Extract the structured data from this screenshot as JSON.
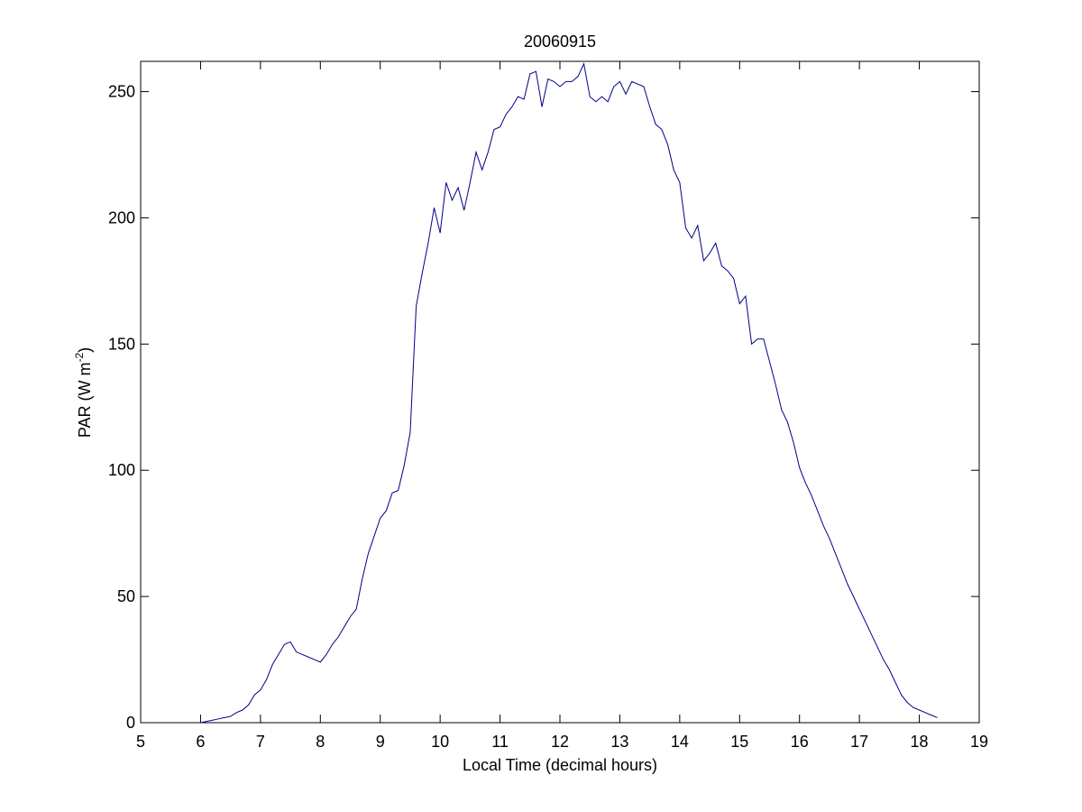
{
  "chart_data": {
    "type": "line",
    "title": "20060915",
    "xlabel": "Local Time (decimal hours)",
    "ylabel": [
      "PAR (W m",
      "-2",
      ")"
    ],
    "x": [
      6.0,
      6.1,
      6.2,
      6.3,
      6.4,
      6.5,
      6.6,
      6.7,
      6.8,
      6.9,
      7.0,
      7.1,
      7.2,
      7.3,
      7.4,
      7.5,
      7.6,
      7.7,
      7.8,
      7.9,
      8.0,
      8.1,
      8.2,
      8.3,
      8.4,
      8.5,
      8.6,
      8.7,
      8.8,
      8.9,
      9.0,
      9.1,
      9.2,
      9.3,
      9.4,
      9.5,
      9.6,
      9.7,
      9.8,
      9.9,
      10.0,
      10.1,
      10.2,
      10.3,
      10.4,
      10.5,
      10.6,
      10.7,
      10.8,
      10.9,
      11.0,
      11.1,
      11.2,
      11.3,
      11.4,
      11.5,
      11.6,
      11.7,
      11.8,
      11.9,
      12.0,
      12.1,
      12.2,
      12.3,
      12.4,
      12.5,
      12.6,
      12.7,
      12.8,
      12.9,
      13.0,
      13.1,
      13.2,
      13.3,
      13.4,
      13.5,
      13.6,
      13.7,
      13.8,
      13.9,
      14.0,
      14.1,
      14.2,
      14.3,
      14.4,
      14.5,
      14.6,
      14.7,
      14.8,
      14.9,
      15.0,
      15.1,
      15.2,
      15.3,
      15.4,
      15.5,
      15.6,
      15.7,
      15.8,
      15.9,
      16.0,
      16.1,
      16.2,
      16.3,
      16.4,
      16.5,
      16.6,
      16.7,
      16.8,
      16.9,
      17.0,
      17.1,
      17.2,
      17.3,
      17.4,
      17.5,
      17.6,
      17.7,
      17.8,
      17.9,
      18.0,
      18.1,
      18.2,
      18.3
    ],
    "series": [
      {
        "color": "#00008b",
        "values": [
          0,
          0.5,
          1,
          1.5,
          2,
          2.5,
          4,
          5,
          7,
          11,
          13,
          17,
          23,
          27,
          31,
          32,
          28,
          27,
          26,
          25,
          24,
          27,
          31,
          34,
          38,
          42,
          45,
          57,
          67,
          74,
          81,
          84,
          91,
          92,
          102,
          115,
          165,
          178,
          190,
          204,
          194,
          214,
          207,
          212,
          203,
          214,
          226,
          219,
          226,
          235,
          236,
          241,
          244,
          248,
          247,
          257,
          258,
          244,
          255,
          254,
          252,
          254,
          254,
          256,
          261,
          248,
          246,
          248,
          246,
          252,
          254,
          249,
          254,
          253,
          252,
          244,
          237,
          235,
          229,
          219,
          214,
          196,
          192,
          197,
          183,
          186,
          190,
          181,
          179,
          176,
          166,
          169,
          150,
          152,
          152,
          143,
          134,
          124,
          119,
          111,
          101,
          95,
          90,
          84,
          78,
          73,
          67,
          61,
          55,
          50,
          45,
          40,
          35,
          30,
          25,
          21,
          16,
          11,
          8,
          6,
          5,
          4,
          3,
          2
        ]
      }
    ],
    "xlim": [
      5,
      19
    ],
    "xticks": [
      5,
      6,
      7,
      8,
      9,
      10,
      11,
      12,
      13,
      14,
      15,
      16,
      17,
      18,
      19
    ],
    "ylim": [
      0,
      262
    ],
    "yticks": [
      0,
      50,
      100,
      150,
      200,
      250
    ],
    "grid": false
  }
}
